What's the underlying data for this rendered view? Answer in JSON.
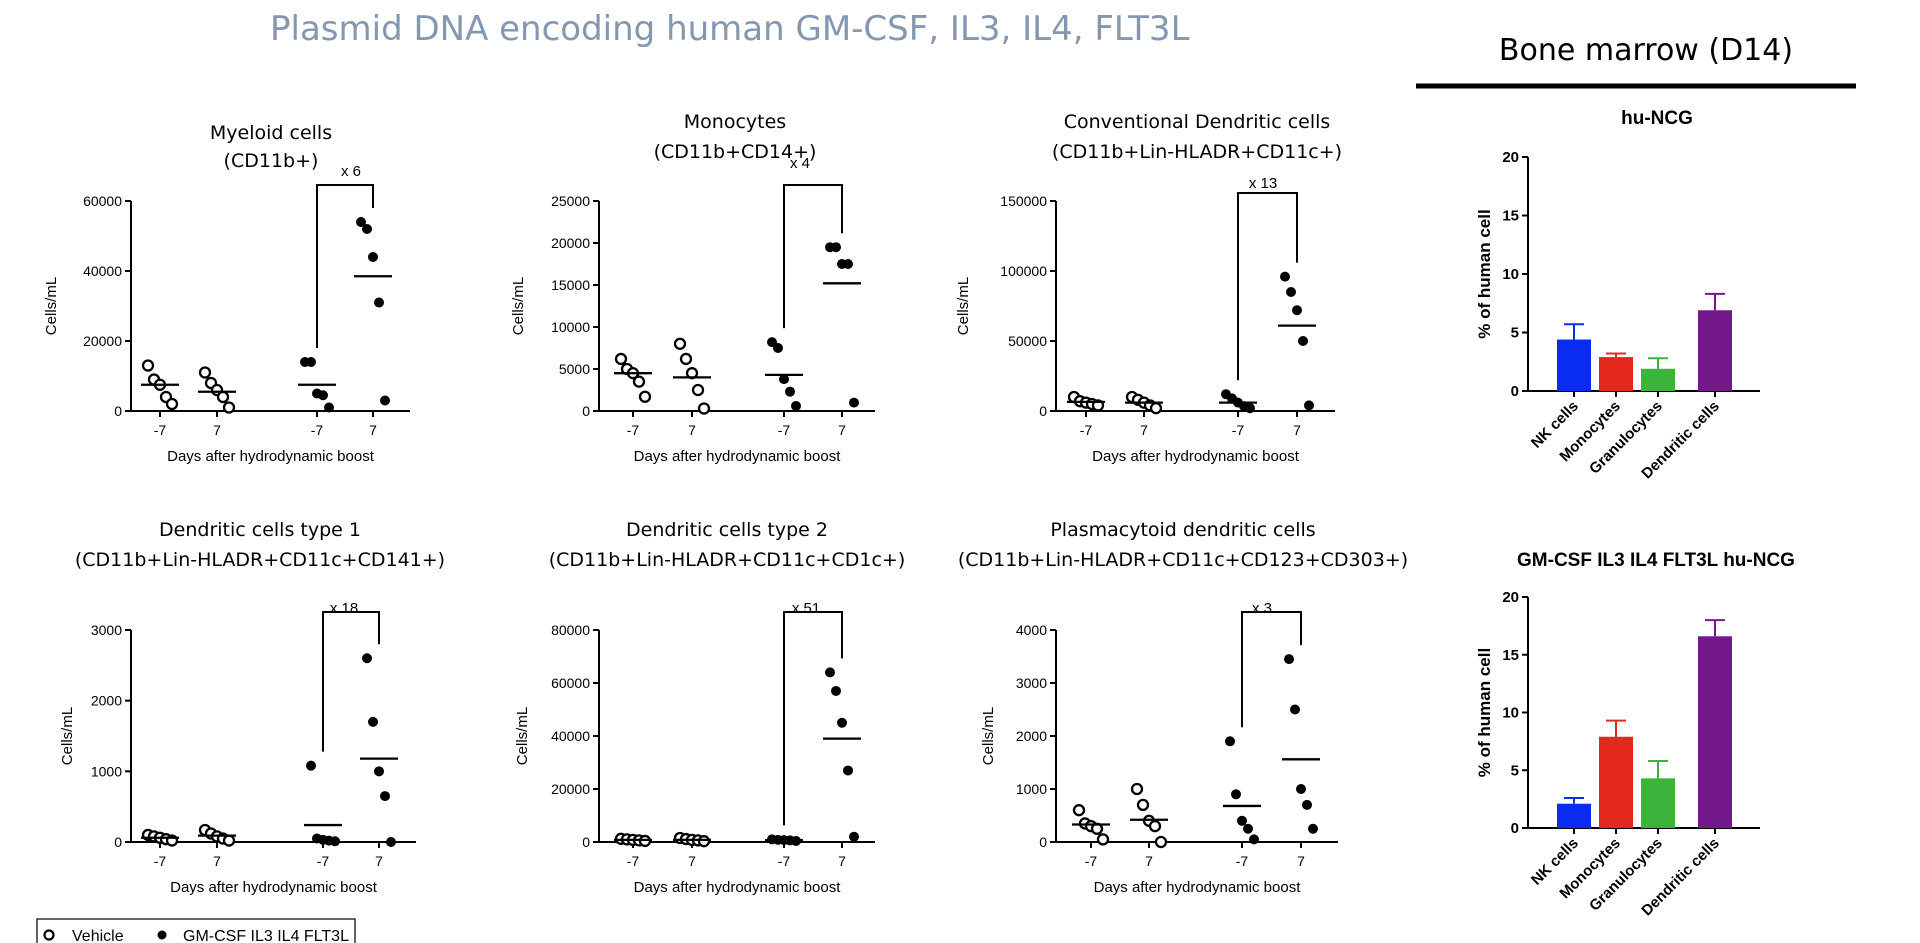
{
  "slide_title": "Plasmid DNA encoding human GM-CSF, IL3, IL4, FLT3L",
  "bone_marrow_title": "Bone marrow (D14)",
  "legend": {
    "vehicle": "Vehicle",
    "treated": "GM-CSF IL3 IL4 FLT3L"
  },
  "colors": {
    "title": "#8497b0",
    "nk": "#0a2cf0",
    "monocytes": "#e3281e",
    "granulocytes": "#3cb43c",
    "dendritic": "#74198a"
  },
  "chart_data": [
    {
      "type": "scatter",
      "title": [
        "Myeloid cells",
        "(CD11b+)"
      ],
      "ylabel": "Cells/mL",
      "xlabel": "Days after hydrodynamic boost",
      "ylim": [
        0,
        60000
      ],
      "yticks": [
        "0",
        "20000",
        "40000",
        "60000"
      ],
      "yticks_values": [
        0,
        20000,
        40000,
        60000
      ],
      "fold": "x 6",
      "groups": [
        {
          "label": "-7",
          "series": "Vehicle",
          "values": [
            13000,
            9000,
            7500,
            4000,
            2000
          ],
          "mean": 7500
        },
        {
          "label": "7",
          "series": "Vehicle",
          "values": [
            11000,
            8000,
            6000,
            4000,
            1000
          ],
          "mean": 5500
        },
        {
          "label": "-7",
          "series": "GM-CSF IL3 IL4 FLT3L",
          "values": [
            14000,
            14000,
            5000,
            4500,
            1000
          ],
          "mean": 7500
        },
        {
          "label": "7",
          "series": "GM-CSF IL3 IL4 FLT3L",
          "values": [
            54000,
            52000,
            44000,
            31000,
            3000
          ],
          "mean": 38500
        }
      ]
    },
    {
      "type": "scatter",
      "title": [
        "Monocytes",
        "(CD11b+CD14+)"
      ],
      "ylabel": "Cells/mL",
      "xlabel": "Days after hydrodynamic boost",
      "ylim": [
        0,
        25000
      ],
      "yticks": [
        "0",
        "5000",
        "10000",
        "15000",
        "20000",
        "25000"
      ],
      "yticks_values": [
        0,
        5000,
        10000,
        15000,
        20000,
        25000
      ],
      "fold": "x 4",
      "groups": [
        {
          "label": "-7",
          "series": "Vehicle",
          "values": [
            6200,
            5000,
            4500,
            3500,
            1700
          ],
          "mean": 4500
        },
        {
          "label": "7",
          "series": "Vehicle",
          "values": [
            8000,
            6200,
            4500,
            2500,
            300
          ],
          "mean": 4000
        },
        {
          "label": "-7",
          "series": "GM-CSF IL3 IL4 FLT3L",
          "values": [
            8200,
            7500,
            3800,
            2300,
            600
          ],
          "mean": 4300
        },
        {
          "label": "7",
          "series": "GM-CSF IL3 IL4 FLT3L",
          "values": [
            19500,
            19500,
            17500,
            17500,
            1000
          ],
          "mean": 15200
        }
      ]
    },
    {
      "type": "scatter",
      "title": [
        "Conventional Dendritic cells",
        "(CD11b+Lin-HLADR+CD11c+)"
      ],
      "ylabel": "Cells/mL",
      "xlabel": "Days after hydrodynamic boost",
      "ylim": [
        0,
        150000
      ],
      "yticks": [
        "0",
        "50000",
        "100000",
        "150000"
      ],
      "yticks_values": [
        0,
        50000,
        100000,
        150000
      ],
      "fold": "x 13",
      "groups": [
        {
          "label": "-7",
          "series": "Vehicle",
          "values": [
            10000,
            7000,
            6000,
            5000,
            4000
          ],
          "mean": 6500
        },
        {
          "label": "7",
          "series": "Vehicle",
          "values": [
            10000,
            8000,
            6000,
            4000,
            2000
          ],
          "mean": 6000
        },
        {
          "label": "-7",
          "series": "GM-CSF IL3 IL4 FLT3L",
          "values": [
            12000,
            9000,
            6000,
            3500,
            2000
          ],
          "mean": 6000
        },
        {
          "label": "7",
          "series": "GM-CSF IL3 IL4 FLT3L",
          "values": [
            96000,
            85000,
            72000,
            50000,
            4000
          ],
          "mean": 61000
        }
      ]
    },
    {
      "type": "scatter",
      "title": [
        "Dendritic cells type 1",
        "(CD11b+Lin-HLADR+CD11c+CD141+)"
      ],
      "ylabel": "Cells/mL",
      "xlabel": "Days after hydrodynamic boost",
      "ylim": [
        0,
        3000
      ],
      "yticks": [
        "0",
        "1000",
        "2000",
        "3000"
      ],
      "yticks_values": [
        0,
        1000,
        2000,
        3000
      ],
      "fold": "x 18",
      "groups": [
        {
          "label": "-7",
          "series": "Vehicle",
          "values": [
            100,
            80,
            60,
            40,
            20
          ],
          "mean": 60
        },
        {
          "label": "7",
          "series": "Vehicle",
          "values": [
            170,
            120,
            80,
            50,
            20
          ],
          "mean": 90
        },
        {
          "label": "-7",
          "series": "GM-CSF IL3 IL4 FLT3L",
          "values": [
            1080,
            50,
            30,
            20,
            10
          ],
          "mean": 240
        },
        {
          "label": "7",
          "series": "GM-CSF IL3 IL4 FLT3L",
          "values": [
            2600,
            1700,
            1000,
            650,
            0
          ],
          "mean": 1180
        }
      ]
    },
    {
      "type": "scatter",
      "title": [
        "Dendritic cells type 2",
        "(CD11b+Lin-HLADR+CD11c+CD1c+)"
      ],
      "ylabel": "Cells/mL",
      "xlabel": "Days after hydrodynamic boost",
      "ylim": [
        0,
        80000
      ],
      "yticks": [
        "0",
        "20000",
        "40000",
        "60000",
        "80000"
      ],
      "yticks_values": [
        0,
        20000,
        40000,
        60000,
        80000
      ],
      "fold": "x 51",
      "groups": [
        {
          "label": "-7",
          "series": "Vehicle",
          "values": [
            1200,
            1000,
            800,
            600,
            400
          ],
          "mean": 800
        },
        {
          "label": "7",
          "series": "Vehicle",
          "values": [
            1500,
            1100,
            800,
            600,
            300
          ],
          "mean": 800
        },
        {
          "label": "-7",
          "series": "GM-CSF IL3 IL4 FLT3L",
          "values": [
            1000,
            800,
            700,
            600,
            400
          ],
          "mean": 700
        },
        {
          "label": "7",
          "series": "GM-CSF IL3 IL4 FLT3L",
          "values": [
            64000,
            57000,
            45000,
            27000,
            2000
          ],
          "mean": 39000
        }
      ]
    },
    {
      "type": "scatter",
      "title": [
        "Plasmacytoid dendritic cells",
        "(CD11b+Lin-HLADR+CD11c+CD123+CD303+)"
      ],
      "ylabel": "Cells/mL",
      "xlabel": "Days after hydrodynamic boost",
      "ylim": [
        0,
        4000
      ],
      "yticks": [
        "0",
        "1000",
        "2000",
        "3000",
        "4000"
      ],
      "yticks_values": [
        0,
        1000,
        2000,
        3000,
        4000
      ],
      "fold": "x 3",
      "groups": [
        {
          "label": "-7",
          "series": "Vehicle",
          "values": [
            600,
            350,
            300,
            250,
            50
          ],
          "mean": 330
        },
        {
          "label": "7",
          "series": "Vehicle",
          "values": [
            1000,
            700,
            400,
            300,
            0
          ],
          "mean": 420
        },
        {
          "label": "-7",
          "series": "GM-CSF IL3 IL4 FLT3L",
          "values": [
            1900,
            900,
            400,
            250,
            50
          ],
          "mean": 680
        },
        {
          "label": "7",
          "series": "GM-CSF IL3 IL4 FLT3L",
          "values": [
            3450,
            2500,
            1000,
            700,
            250
          ],
          "mean": 1560
        }
      ]
    },
    {
      "type": "bar",
      "title": "hu-NCG",
      "ylabel": "% of human cell",
      "ylim": [
        0,
        20
      ],
      "yticks": [
        "0",
        "5",
        "10",
        "15",
        "20"
      ],
      "yticks_values": [
        0,
        5,
        10,
        15,
        20
      ],
      "categories": [
        "NK cells",
        "Monocytes",
        "Granulocytes",
        "Dendritic cells"
      ],
      "values": [
        4.4,
        2.9,
        1.9,
        6.9
      ],
      "errors": [
        1.3,
        0.3,
        0.9,
        1.4
      ]
    },
    {
      "type": "bar",
      "title": "GM-CSF IL3 IL4 FLT3L hu-NCG",
      "ylabel": "% of human cell",
      "ylim": [
        0,
        20
      ],
      "yticks": [
        "0",
        "5",
        "10",
        "15",
        "20"
      ],
      "yticks_values": [
        0,
        5,
        10,
        15,
        20
      ],
      "categories": [
        "NK cells",
        "Monocytes",
        "Granulocytes",
        "Dendritic cells"
      ],
      "values": [
        2.1,
        7.9,
        4.3,
        16.6
      ],
      "errors": [
        0.5,
        1.4,
        1.5,
        1.4
      ]
    }
  ]
}
